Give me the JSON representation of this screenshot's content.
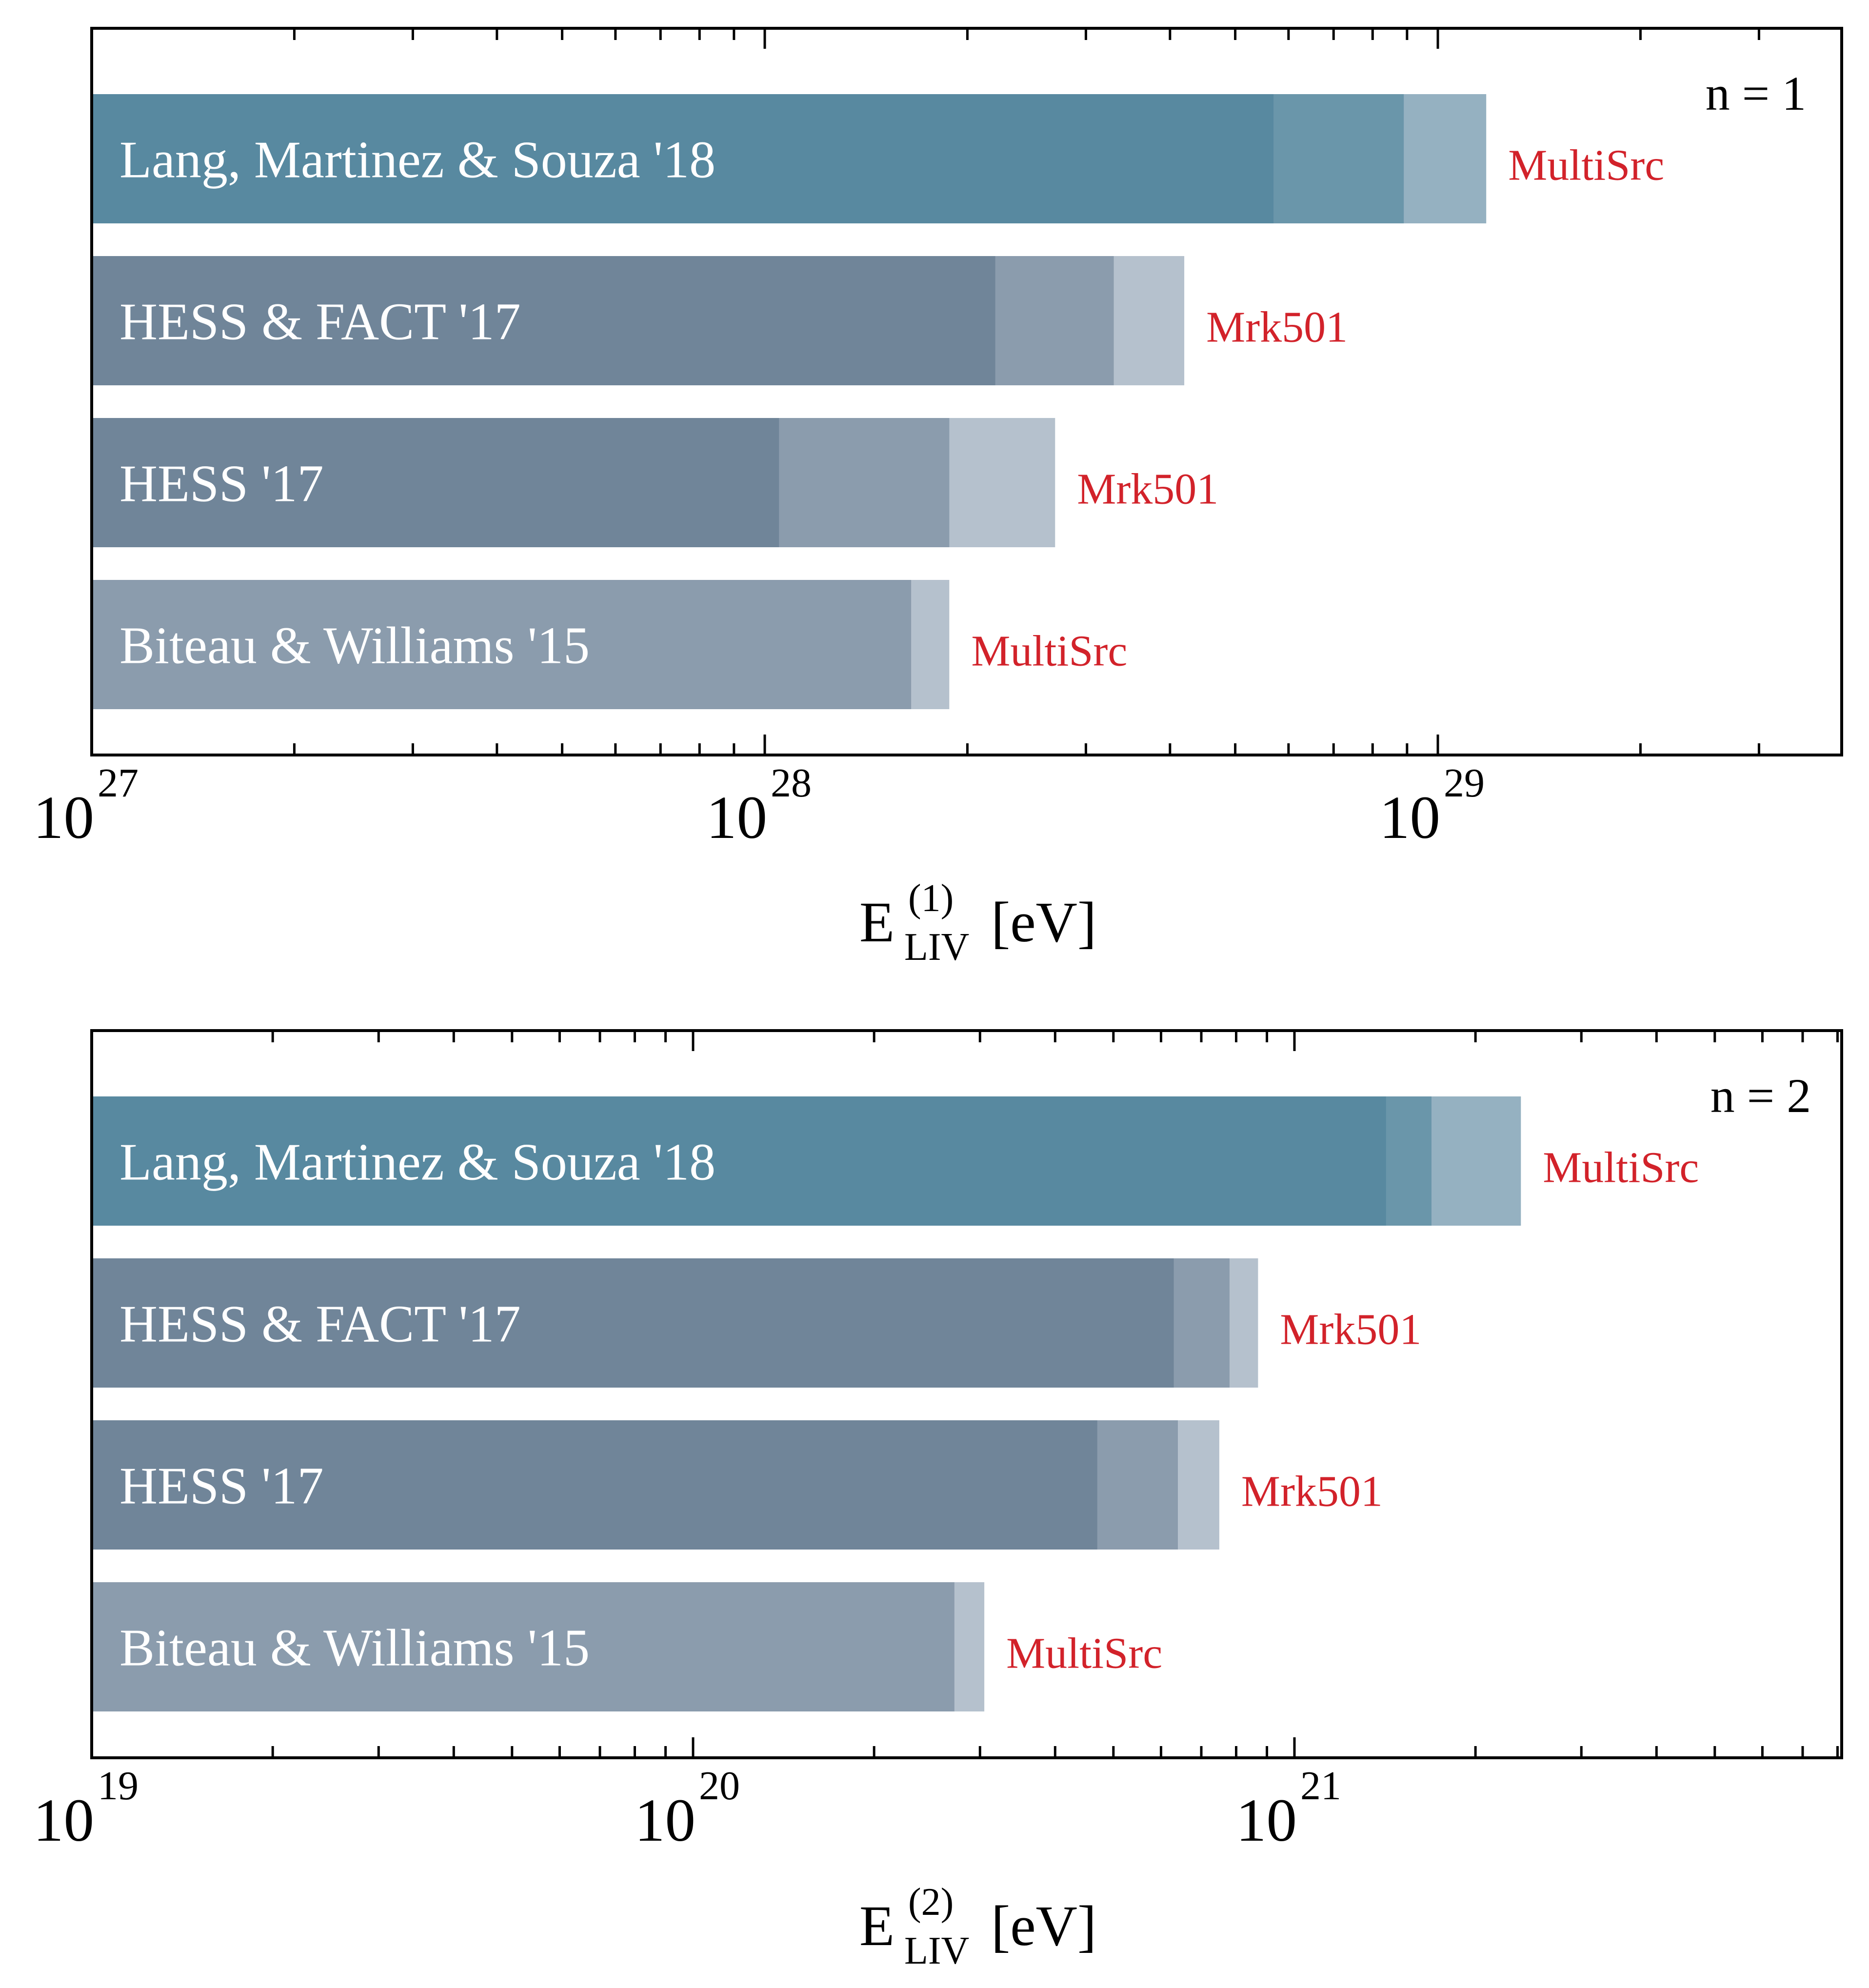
{
  "chart_data": [
    {
      "type": "bar",
      "orientation": "horizontal",
      "scale": "log",
      "panel_label": "n = 1",
      "xlabel": {
        "symbol": "E",
        "superscript": "(1)",
        "subscript": "LIV",
        "unit": "[eV]"
      },
      "xlim_log10": [
        27,
        29.6
      ],
      "major_ticks": [
        {
          "base": "10",
          "exp": "27",
          "log10": 27
        },
        {
          "base": "10",
          "exp": "28",
          "log10": 28
        },
        {
          "base": "10",
          "exp": "29",
          "log10": 29
        }
      ],
      "bars": [
        {
          "label": "Lang, Martinez & Souza '18",
          "source": "MultiSrc",
          "segments": [
            5.7e+28,
            8.9e+28,
            1.18e+29
          ],
          "colors": [
            "#5889a0",
            "#6a96aa",
            "#95b1c1"
          ]
        },
        {
          "label": "HESS & FACT '17",
          "source": "Mrk501",
          "segments": [
            2.2e+28,
            3.3e+28,
            4.2e+28
          ],
          "colors": [
            "#708599",
            "#8b9cad",
            "#b5c1cd"
          ]
        },
        {
          "label": "HESS '17",
          "source": "Mrk501",
          "segments": [
            1.05e+28,
            1.88e+28,
            2.7e+28
          ],
          "colors": [
            "#708599",
            "#8b9cad",
            "#b5c1cd"
          ]
        },
        {
          "label": "Biteau & Williams '15",
          "source": "MultiSrc",
          "segments": [
            1.65e+28,
            1.88e+28
          ],
          "colors": [
            "#8b9cad",
            "#b5c1cd"
          ]
        }
      ]
    },
    {
      "type": "bar",
      "orientation": "horizontal",
      "scale": "log",
      "panel_label": "n = 2",
      "xlabel": {
        "symbol": "E",
        "superscript": "(2)",
        "subscript": "LIV",
        "unit": "[eV]"
      },
      "xlim_log10": [
        19,
        21.91
      ],
      "major_ticks": [
        {
          "base": "10",
          "exp": "19",
          "log10": 19
        },
        {
          "base": "10",
          "exp": "20",
          "log10": 20
        },
        {
          "base": "10",
          "exp": "21",
          "log10": 21
        }
      ],
      "bars": [
        {
          "label": "Lang, Martinez & Souza '18",
          "source": "MultiSrc",
          "segments": [
            1.42e+21,
            1.69e+21,
            2.38e+21
          ],
          "colors": [
            "#5889a0",
            "#6a96aa",
            "#95b1c1"
          ]
        },
        {
          "label": "HESS & FACT '17",
          "source": "Mrk501",
          "segments": [
            6.3e+20,
            7.8e+20,
            8.7e+20
          ],
          "colors": [
            "#708599",
            "#8b9cad",
            "#b5c1cd"
          ]
        },
        {
          "label": "HESS '17",
          "source": "Mrk501",
          "segments": [
            4.7e+20,
            6.4e+20,
            7.5e+20
          ],
          "colors": [
            "#708599",
            "#8b9cad",
            "#b5c1cd"
          ]
        },
        {
          "label": "Biteau & Williams '15",
          "source": "MultiSrc",
          "segments": [
            2.72e+20,
            3.05e+20
          ],
          "colors": [
            "#8b9cad",
            "#b5c1cd"
          ]
        }
      ]
    }
  ],
  "style": {
    "source_label_color": "#d2222a",
    "bar_text_color": "#ffffff",
    "axis_color": "#000000"
  }
}
